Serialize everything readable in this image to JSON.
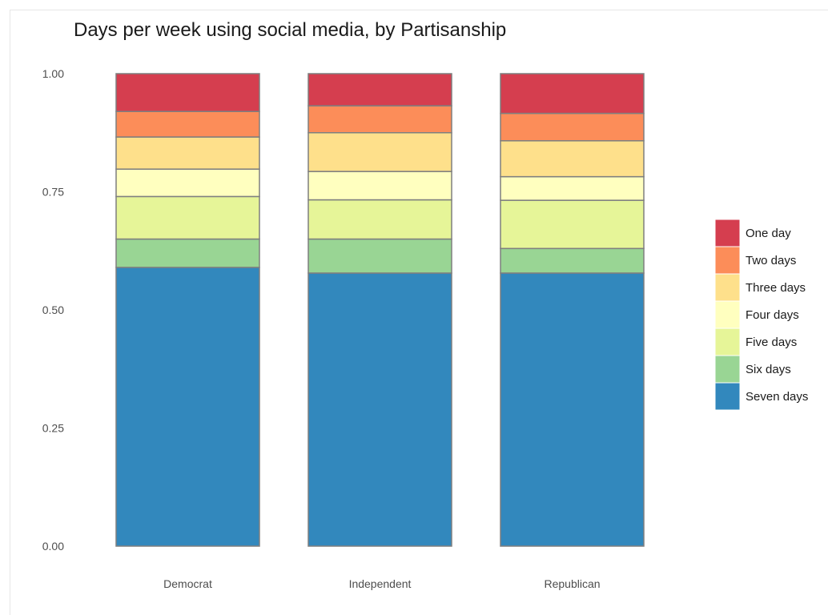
{
  "chart_data": {
    "type": "bar",
    "stacked": true,
    "title": "Days per week using social media, by Partisanship",
    "xlabel": "",
    "ylabel": "",
    "ylim": [
      0,
      1
    ],
    "yticks": [
      "0.00",
      "0.25",
      "0.50",
      "0.75",
      "1.00"
    ],
    "categories": [
      "Democrat",
      "Independent",
      "Republican"
    ],
    "grid": false,
    "legend_position": "right",
    "series": [
      {
        "name": "Seven days",
        "color": "#3288bd",
        "values": [
          0.59,
          0.578,
          0.578
        ]
      },
      {
        "name": "Six days",
        "color": "#99d594",
        "values": [
          0.06,
          0.072,
          0.052
        ]
      },
      {
        "name": "Five days",
        "color": "#e6f598",
        "values": [
          0.09,
          0.083,
          0.102
        ]
      },
      {
        "name": "Four days",
        "color": "#ffffbf",
        "values": [
          0.058,
          0.06,
          0.05
        ]
      },
      {
        "name": "Three days",
        "color": "#fee08b",
        "values": [
          0.068,
          0.082,
          0.076
        ]
      },
      {
        "name": "Two days",
        "color": "#fc8d59",
        "values": [
          0.054,
          0.057,
          0.058
        ]
      },
      {
        "name": "One day",
        "color": "#d53e4f",
        "values": [
          0.08,
          0.068,
          0.084
        ]
      }
    ]
  }
}
